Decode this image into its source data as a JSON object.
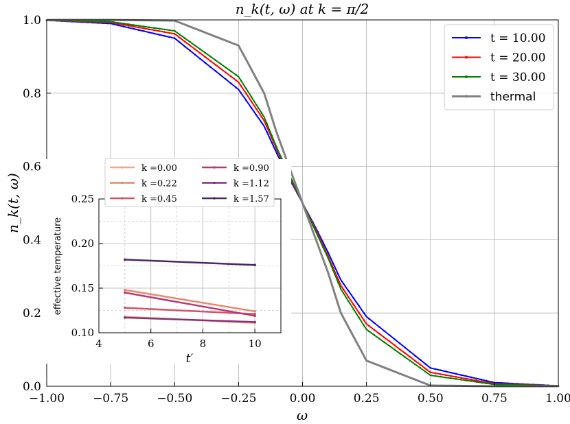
{
  "chart_data": [
    {
      "type": "line",
      "title": "n_k(t, ω) at k = π/2",
      "xlabel": "ω",
      "ylabel": "n_k(t, ω)",
      "xlim": [
        -1.0,
        1.0
      ],
      "ylim": [
        0.0,
        1.0
      ],
      "xticks": [
        "−1.00",
        "−0.75",
        "−0.50",
        "−0.25",
        "0.00",
        "0.25",
        "0.50",
        "0.75",
        "1.00"
      ],
      "yticks": [
        "0.0",
        "0.2",
        "0.4",
        "0.6",
        "0.8",
        "1.0"
      ],
      "grid": true,
      "legend_position": "top-right",
      "x": [
        -1.0,
        -0.75,
        -0.5,
        -0.25,
        -0.15,
        -0.1,
        -0.05,
        0.0,
        0.05,
        0.1,
        0.15,
        0.25,
        0.5,
        0.75,
        1.0
      ],
      "series": [
        {
          "name": "t = 10.00",
          "color": "#0000ff",
          "values": [
            0.999,
            0.99,
            0.95,
            0.81,
            0.71,
            0.635,
            0.565,
            0.5,
            0.435,
            0.365,
            0.29,
            0.19,
            0.05,
            0.01,
            0.001
          ]
        },
        {
          "name": "t = 20.00",
          "color": "#ff0000",
          "values": [
            0.999,
            0.993,
            0.962,
            0.83,
            0.725,
            0.645,
            0.57,
            0.5,
            0.43,
            0.355,
            0.275,
            0.17,
            0.038,
            0.007,
            0.001
          ]
        },
        {
          "name": "t = 30.00",
          "color": "#008000",
          "values": [
            0.999,
            0.995,
            0.97,
            0.845,
            0.735,
            0.65,
            0.575,
            0.5,
            0.425,
            0.35,
            0.265,
            0.155,
            0.03,
            0.005,
            0.001
          ]
        },
        {
          "name": "thermal",
          "color": "#808080",
          "values": [
            1.0,
            1.0,
            0.998,
            0.93,
            0.8,
            0.69,
            0.595,
            0.5,
            0.405,
            0.31,
            0.2,
            0.07,
            0.002,
            0.0,
            0.0
          ]
        }
      ]
    },
    {
      "type": "line",
      "xlabel": "t′",
      "ylabel": "effective temperature",
      "xlim": [
        4,
        11
      ],
      "ylim": [
        0.1,
        0.25
      ],
      "xticks": [
        "4",
        "6",
        "8",
        "10"
      ],
      "yticks": [
        "0.10",
        "0.15",
        "0.20",
        "0.25"
      ],
      "grid": true,
      "legend_position": "top",
      "x": [
        5,
        10
      ],
      "series": [
        {
          "name": "k =0.00",
          "color": "#f4a582",
          "values": [
            0.118,
            0.111
          ]
        },
        {
          "name": "k =0.22",
          "color": "#e9866a",
          "values": [
            0.148,
            0.124
          ]
        },
        {
          "name": "k =0.45",
          "color": "#d6516b",
          "values": [
            0.128,
            0.121
          ]
        },
        {
          "name": "k =0.90",
          "color": "#b93a70",
          "values": [
            0.145,
            0.119
          ]
        },
        {
          "name": "k =1.12",
          "color": "#8a2f77",
          "values": [
            0.117,
            0.112
          ]
        },
        {
          "name": "k =1.57",
          "color": "#4b2763",
          "values": [
            0.182,
            0.176
          ]
        }
      ]
    }
  ]
}
